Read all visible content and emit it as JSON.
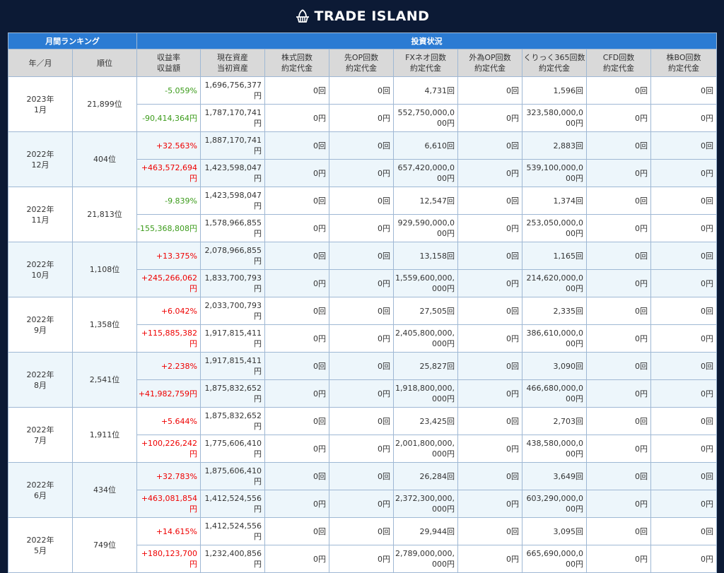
{
  "brand": {
    "name": "TRADE ISLAND",
    "icon": "trade-island-logo"
  },
  "table": {
    "group_headers": {
      "ranking": "月間ランキング",
      "status": "投資状況"
    },
    "columns": [
      {
        "line1": "年／月",
        "line2": ""
      },
      {
        "line1": "順位",
        "line2": ""
      },
      {
        "line1": "収益率",
        "line2": "収益額"
      },
      {
        "line1": "現在資産",
        "line2": "当初資産"
      },
      {
        "line1": "株式回数",
        "line2": "約定代金"
      },
      {
        "line1": "先OP回数",
        "line2": "約定代金"
      },
      {
        "line1": "FXネオ回数",
        "line2": "約定代金"
      },
      {
        "line1": "外為OP回数",
        "line2": "約定代金"
      },
      {
        "line1": "くりっく365回数",
        "line2": "約定代金"
      },
      {
        "line1": "CFD回数",
        "line2": "約定代金"
      },
      {
        "line1": "株BO回数",
        "line2": "約定代金"
      }
    ],
    "rows": [
      {
        "year": "2023年",
        "month": "1月",
        "rank": "21,899位",
        "rate": "-5.059%",
        "amount": "-90,414,364円",
        "sign": "neg",
        "current_asset": "1,696,756,377円",
        "initial_asset": "1,787,170,741円",
        "stock_count": "0回",
        "stock_value": "0円",
        "op_count": "0回",
        "op_value": "0円",
        "fx_count": "4,731回",
        "fx_value": "552,750,000,000円",
        "fxop_count": "0回",
        "fxop_value": "0円",
        "click_count": "1,596回",
        "click_value": "323,580,000,000円",
        "cfd_count": "0回",
        "cfd_value": "0円",
        "bo_count": "0回",
        "bo_value": "0円"
      },
      {
        "year": "2022年",
        "month": "12月",
        "rank": "404位",
        "rate": "+32.563%",
        "amount": "+463,572,694円",
        "sign": "pos",
        "current_asset": "1,887,170,741円",
        "initial_asset": "1,423,598,047円",
        "stock_count": "0回",
        "stock_value": "0円",
        "op_count": "0回",
        "op_value": "0円",
        "fx_count": "6,610回",
        "fx_value": "657,420,000,000円",
        "fxop_count": "0回",
        "fxop_value": "0円",
        "click_count": "2,883回",
        "click_value": "539,100,000,000円",
        "cfd_count": "0回",
        "cfd_value": "0円",
        "bo_count": "0回",
        "bo_value": "0円"
      },
      {
        "year": "2022年",
        "month": "11月",
        "rank": "21,813位",
        "rate": "-9.839%",
        "amount": "-155,368,808円",
        "sign": "neg",
        "current_asset": "1,423,598,047円",
        "initial_asset": "1,578,966,855円",
        "stock_count": "0回",
        "stock_value": "0円",
        "op_count": "0回",
        "op_value": "0円",
        "fx_count": "12,547回",
        "fx_value": "929,590,000,000円",
        "fxop_count": "0回",
        "fxop_value": "0円",
        "click_count": "1,374回",
        "click_value": "253,050,000,000円",
        "cfd_count": "0回",
        "cfd_value": "0円",
        "bo_count": "0回",
        "bo_value": "0円"
      },
      {
        "year": "2022年",
        "month": "10月",
        "rank": "1,108位",
        "rate": "+13.375%",
        "amount": "+245,266,062円",
        "sign": "pos",
        "current_asset": "2,078,966,855円",
        "initial_asset": "1,833,700,793円",
        "stock_count": "0回",
        "stock_value": "0円",
        "op_count": "0回",
        "op_value": "0円",
        "fx_count": "13,158回",
        "fx_value": "1,559,600,000,000円",
        "fxop_count": "0回",
        "fxop_value": "0円",
        "click_count": "1,165回",
        "click_value": "214,620,000,000円",
        "cfd_count": "0回",
        "cfd_value": "0円",
        "bo_count": "0回",
        "bo_value": "0円"
      },
      {
        "year": "2022年",
        "month": "9月",
        "rank": "1,358位",
        "rate": "+6.042%",
        "amount": "+115,885,382円",
        "sign": "pos",
        "current_asset": "2,033,700,793円",
        "initial_asset": "1,917,815,411円",
        "stock_count": "0回",
        "stock_value": "0円",
        "op_count": "0回",
        "op_value": "0円",
        "fx_count": "27,505回",
        "fx_value": "2,405,800,000,000円",
        "fxop_count": "0回",
        "fxop_value": "0円",
        "click_count": "2,335回",
        "click_value": "386,610,000,000円",
        "cfd_count": "0回",
        "cfd_value": "0円",
        "bo_count": "0回",
        "bo_value": "0円"
      },
      {
        "year": "2022年",
        "month": "8月",
        "rank": "2,541位",
        "rate": "+2.238%",
        "amount": "+41,982,759円",
        "sign": "pos",
        "current_asset": "1,917,815,411円",
        "initial_asset": "1,875,832,652円",
        "stock_count": "0回",
        "stock_value": "0円",
        "op_count": "0回",
        "op_value": "0円",
        "fx_count": "25,827回",
        "fx_value": "1,918,800,000,000円",
        "fxop_count": "0回",
        "fxop_value": "0円",
        "click_count": "3,090回",
        "click_value": "466,680,000,000円",
        "cfd_count": "0回",
        "cfd_value": "0円",
        "bo_count": "0回",
        "bo_value": "0円"
      },
      {
        "year": "2022年",
        "month": "7月",
        "rank": "1,911位",
        "rate": "+5.644%",
        "amount": "+100,226,242円",
        "sign": "pos",
        "current_asset": "1,875,832,652円",
        "initial_asset": "1,775,606,410円",
        "stock_count": "0回",
        "stock_value": "0円",
        "op_count": "0回",
        "op_value": "0円",
        "fx_count": "23,425回",
        "fx_value": "2,001,800,000,000円",
        "fxop_count": "0回",
        "fxop_value": "0円",
        "click_count": "2,703回",
        "click_value": "438,580,000,000円",
        "cfd_count": "0回",
        "cfd_value": "0円",
        "bo_count": "0回",
        "bo_value": "0円"
      },
      {
        "year": "2022年",
        "month": "6月",
        "rank": "434位",
        "rate": "+32.783%",
        "amount": "+463,081,854円",
        "sign": "pos",
        "current_asset": "1,875,606,410円",
        "initial_asset": "1,412,524,556円",
        "stock_count": "0回",
        "stock_value": "0円",
        "op_count": "0回",
        "op_value": "0円",
        "fx_count": "26,284回",
        "fx_value": "2,372,300,000,000円",
        "fxop_count": "0回",
        "fxop_value": "0円",
        "click_count": "3,649回",
        "click_value": "603,290,000,000円",
        "cfd_count": "0回",
        "cfd_value": "0円",
        "bo_count": "0回",
        "bo_value": "0円"
      },
      {
        "year": "2022年",
        "month": "5月",
        "rank": "749位",
        "rate": "+14.615%",
        "amount": "+180,123,700円",
        "sign": "pos",
        "current_asset": "1,412,524,556円",
        "initial_asset": "1,232,400,856円",
        "stock_count": "0回",
        "stock_value": "0円",
        "op_count": "0回",
        "op_value": "0円",
        "fx_count": "29,944回",
        "fx_value": "2,789,000,000,000円",
        "fxop_count": "0回",
        "fxop_value": "0円",
        "click_count": "3,095回",
        "click_value": "665,690,000,000円",
        "cfd_count": "0回",
        "cfd_value": "0円",
        "bo_count": "0回",
        "bo_value": "0円"
      }
    ]
  }
}
